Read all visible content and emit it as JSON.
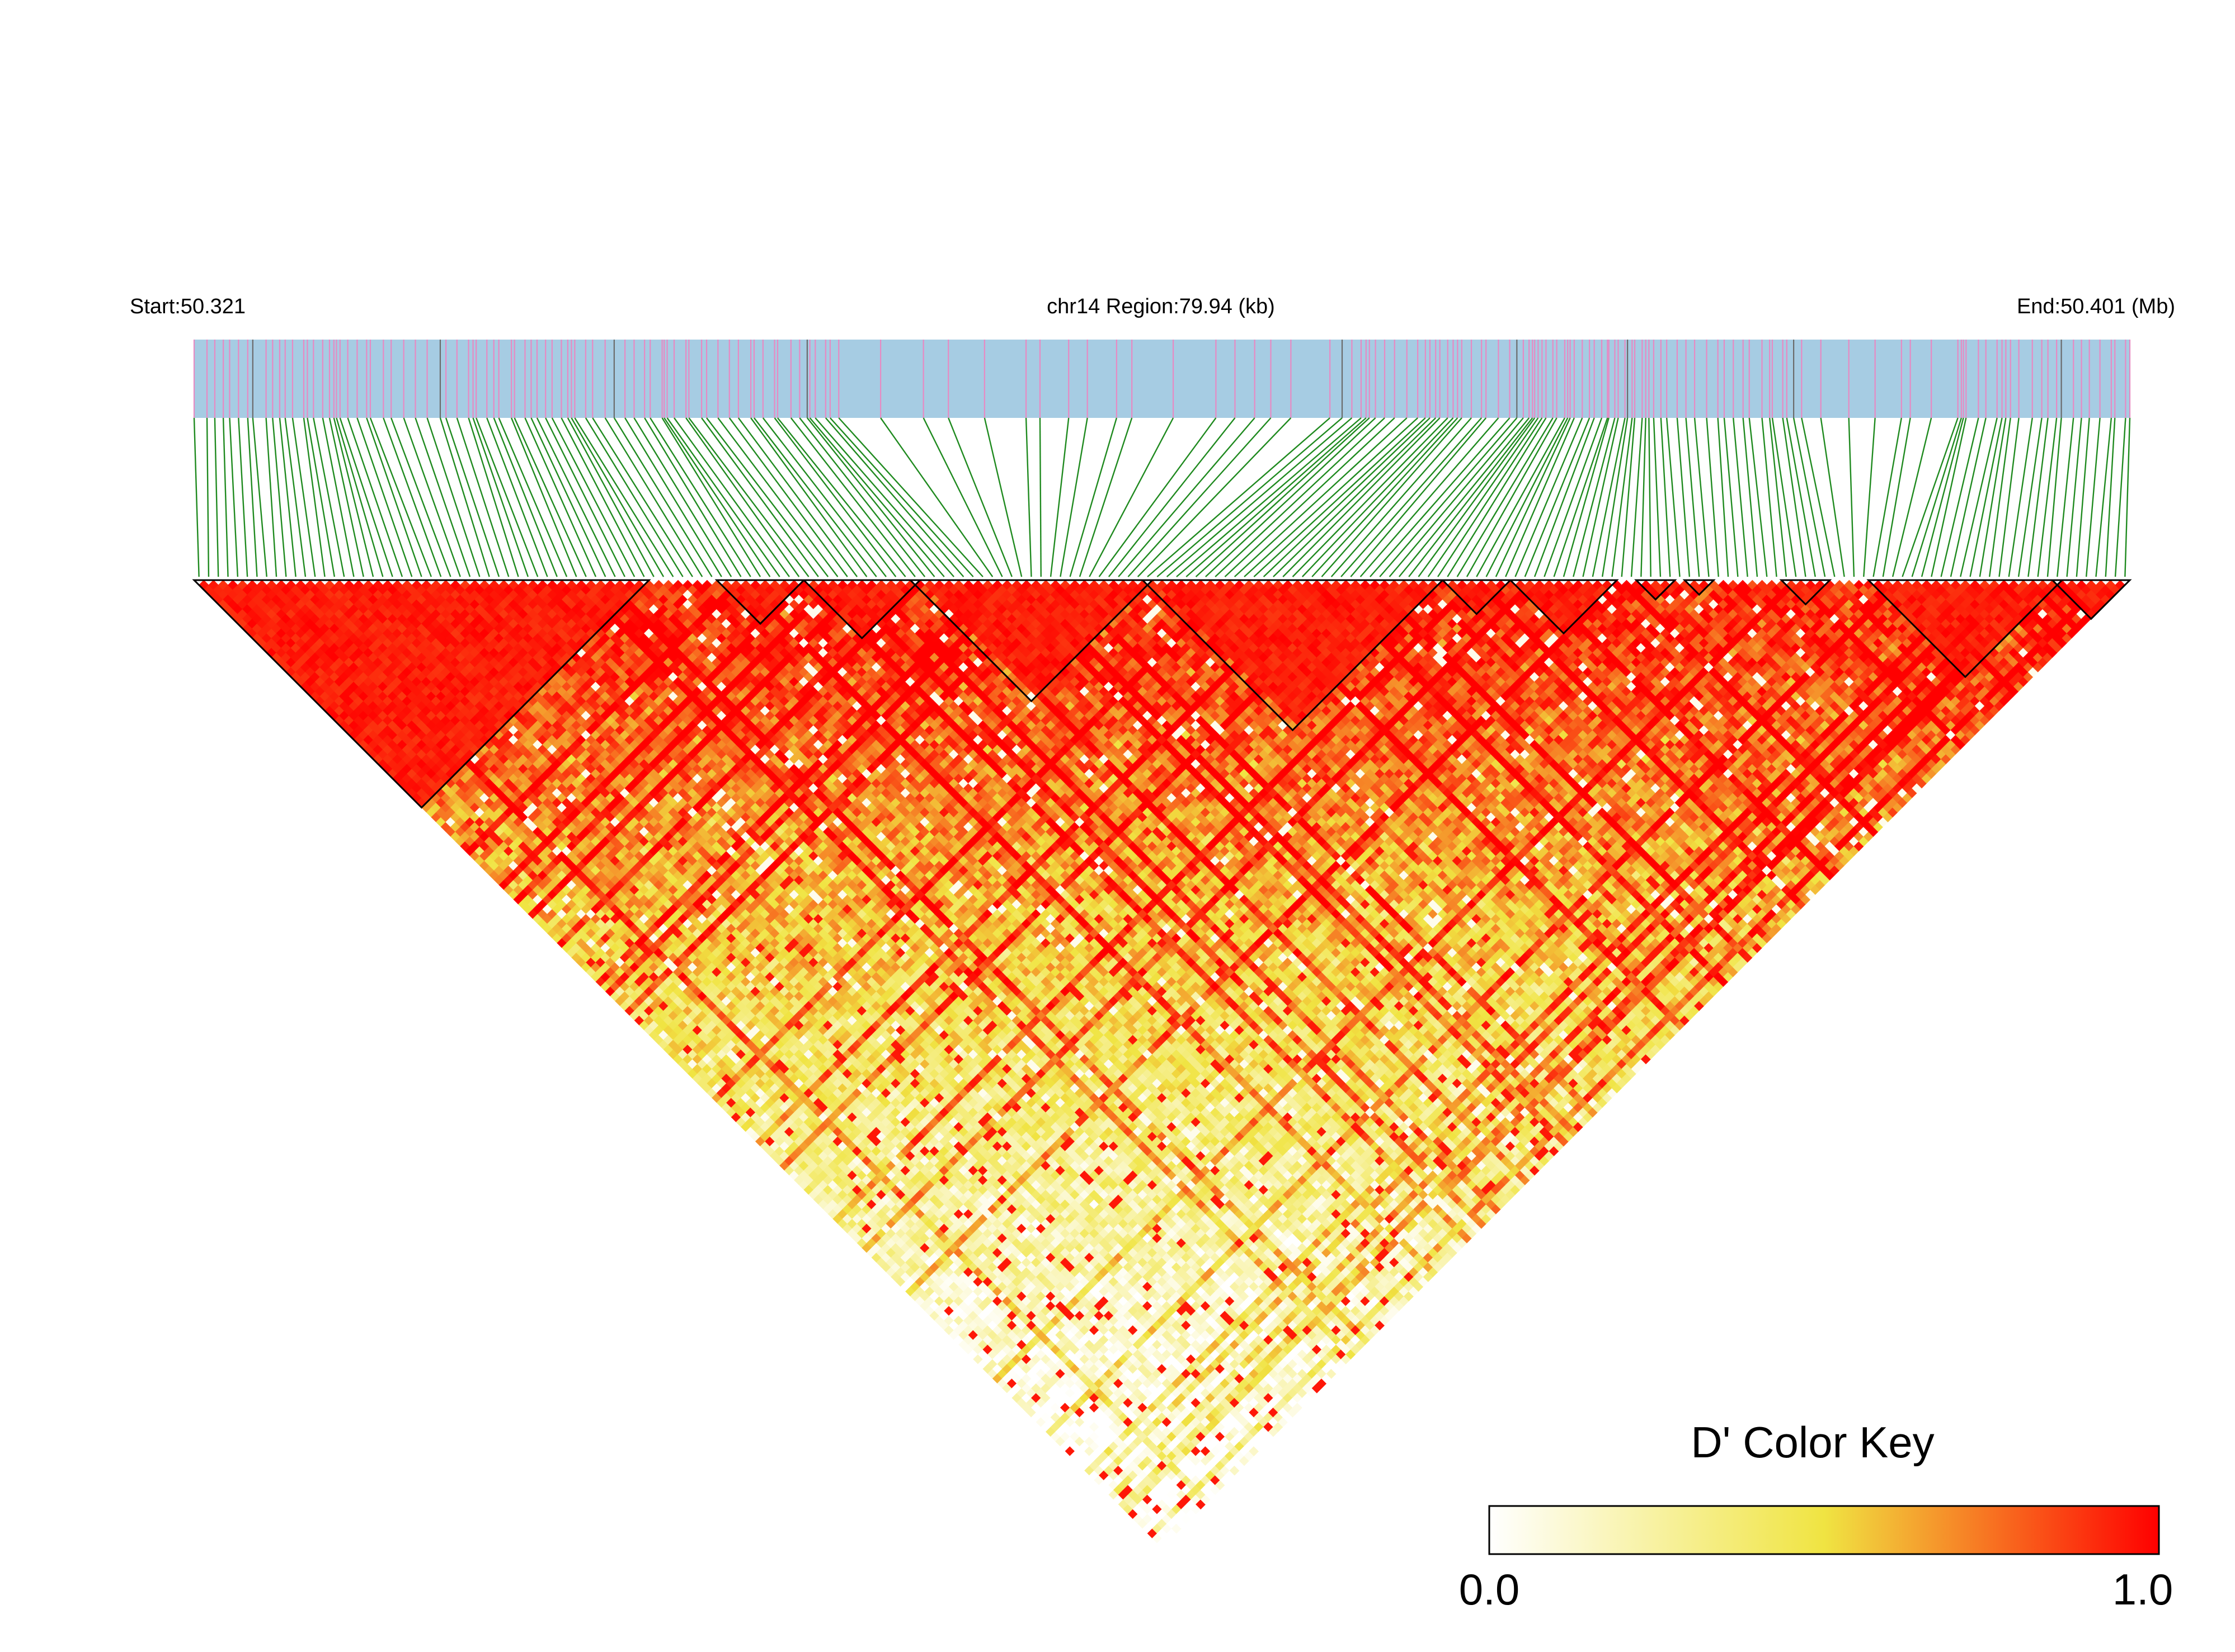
{
  "header": {
    "start_label": "Start:50.321",
    "region_label": "chr14 Region:79.94 (kb)",
    "end_label": "End:50.401 (Mb)"
  },
  "colors": {
    "track_background": "#a6cce3",
    "snp_tick": "#e78ac3",
    "connector_line": "#1f8a1f",
    "heat_low": "#ffffff",
    "heat_mid": "#f0e442",
    "heat_high": "#ff0000",
    "block_outline": "#000000"
  },
  "color_key": {
    "title": "D' Color Key",
    "min_label": "0.0",
    "max_label": "1.0"
  },
  "chart_data": {
    "type": "heatmap",
    "subtype": "LD triangle",
    "metric": "D'",
    "chromosome": "chr14",
    "start_mb": 50.321,
    "end_mb": 50.401,
    "region_kb": 79.94,
    "approx_snp_count": 200,
    "color_scale": {
      "min": 0.0,
      "max": 1.0,
      "low_color": "#ffffff",
      "mid_color": "#f0e442",
      "high_color": "#ff0000"
    },
    "ld_blocks_fraction_of_region": [
      [
        0.0,
        0.235
      ],
      [
        0.272,
        0.315
      ],
      [
        0.315,
        0.372
      ],
      [
        0.372,
        0.493
      ],
      [
        0.493,
        0.641
      ],
      [
        0.649,
        0.678
      ],
      [
        0.681,
        0.732
      ],
      [
        0.748,
        0.762
      ],
      [
        0.773,
        0.785
      ],
      [
        0.821,
        0.843
      ],
      [
        0.869,
        0.962
      ],
      [
        0.962,
        1.0
      ]
    ],
    "legend_position": "bottom-right"
  }
}
